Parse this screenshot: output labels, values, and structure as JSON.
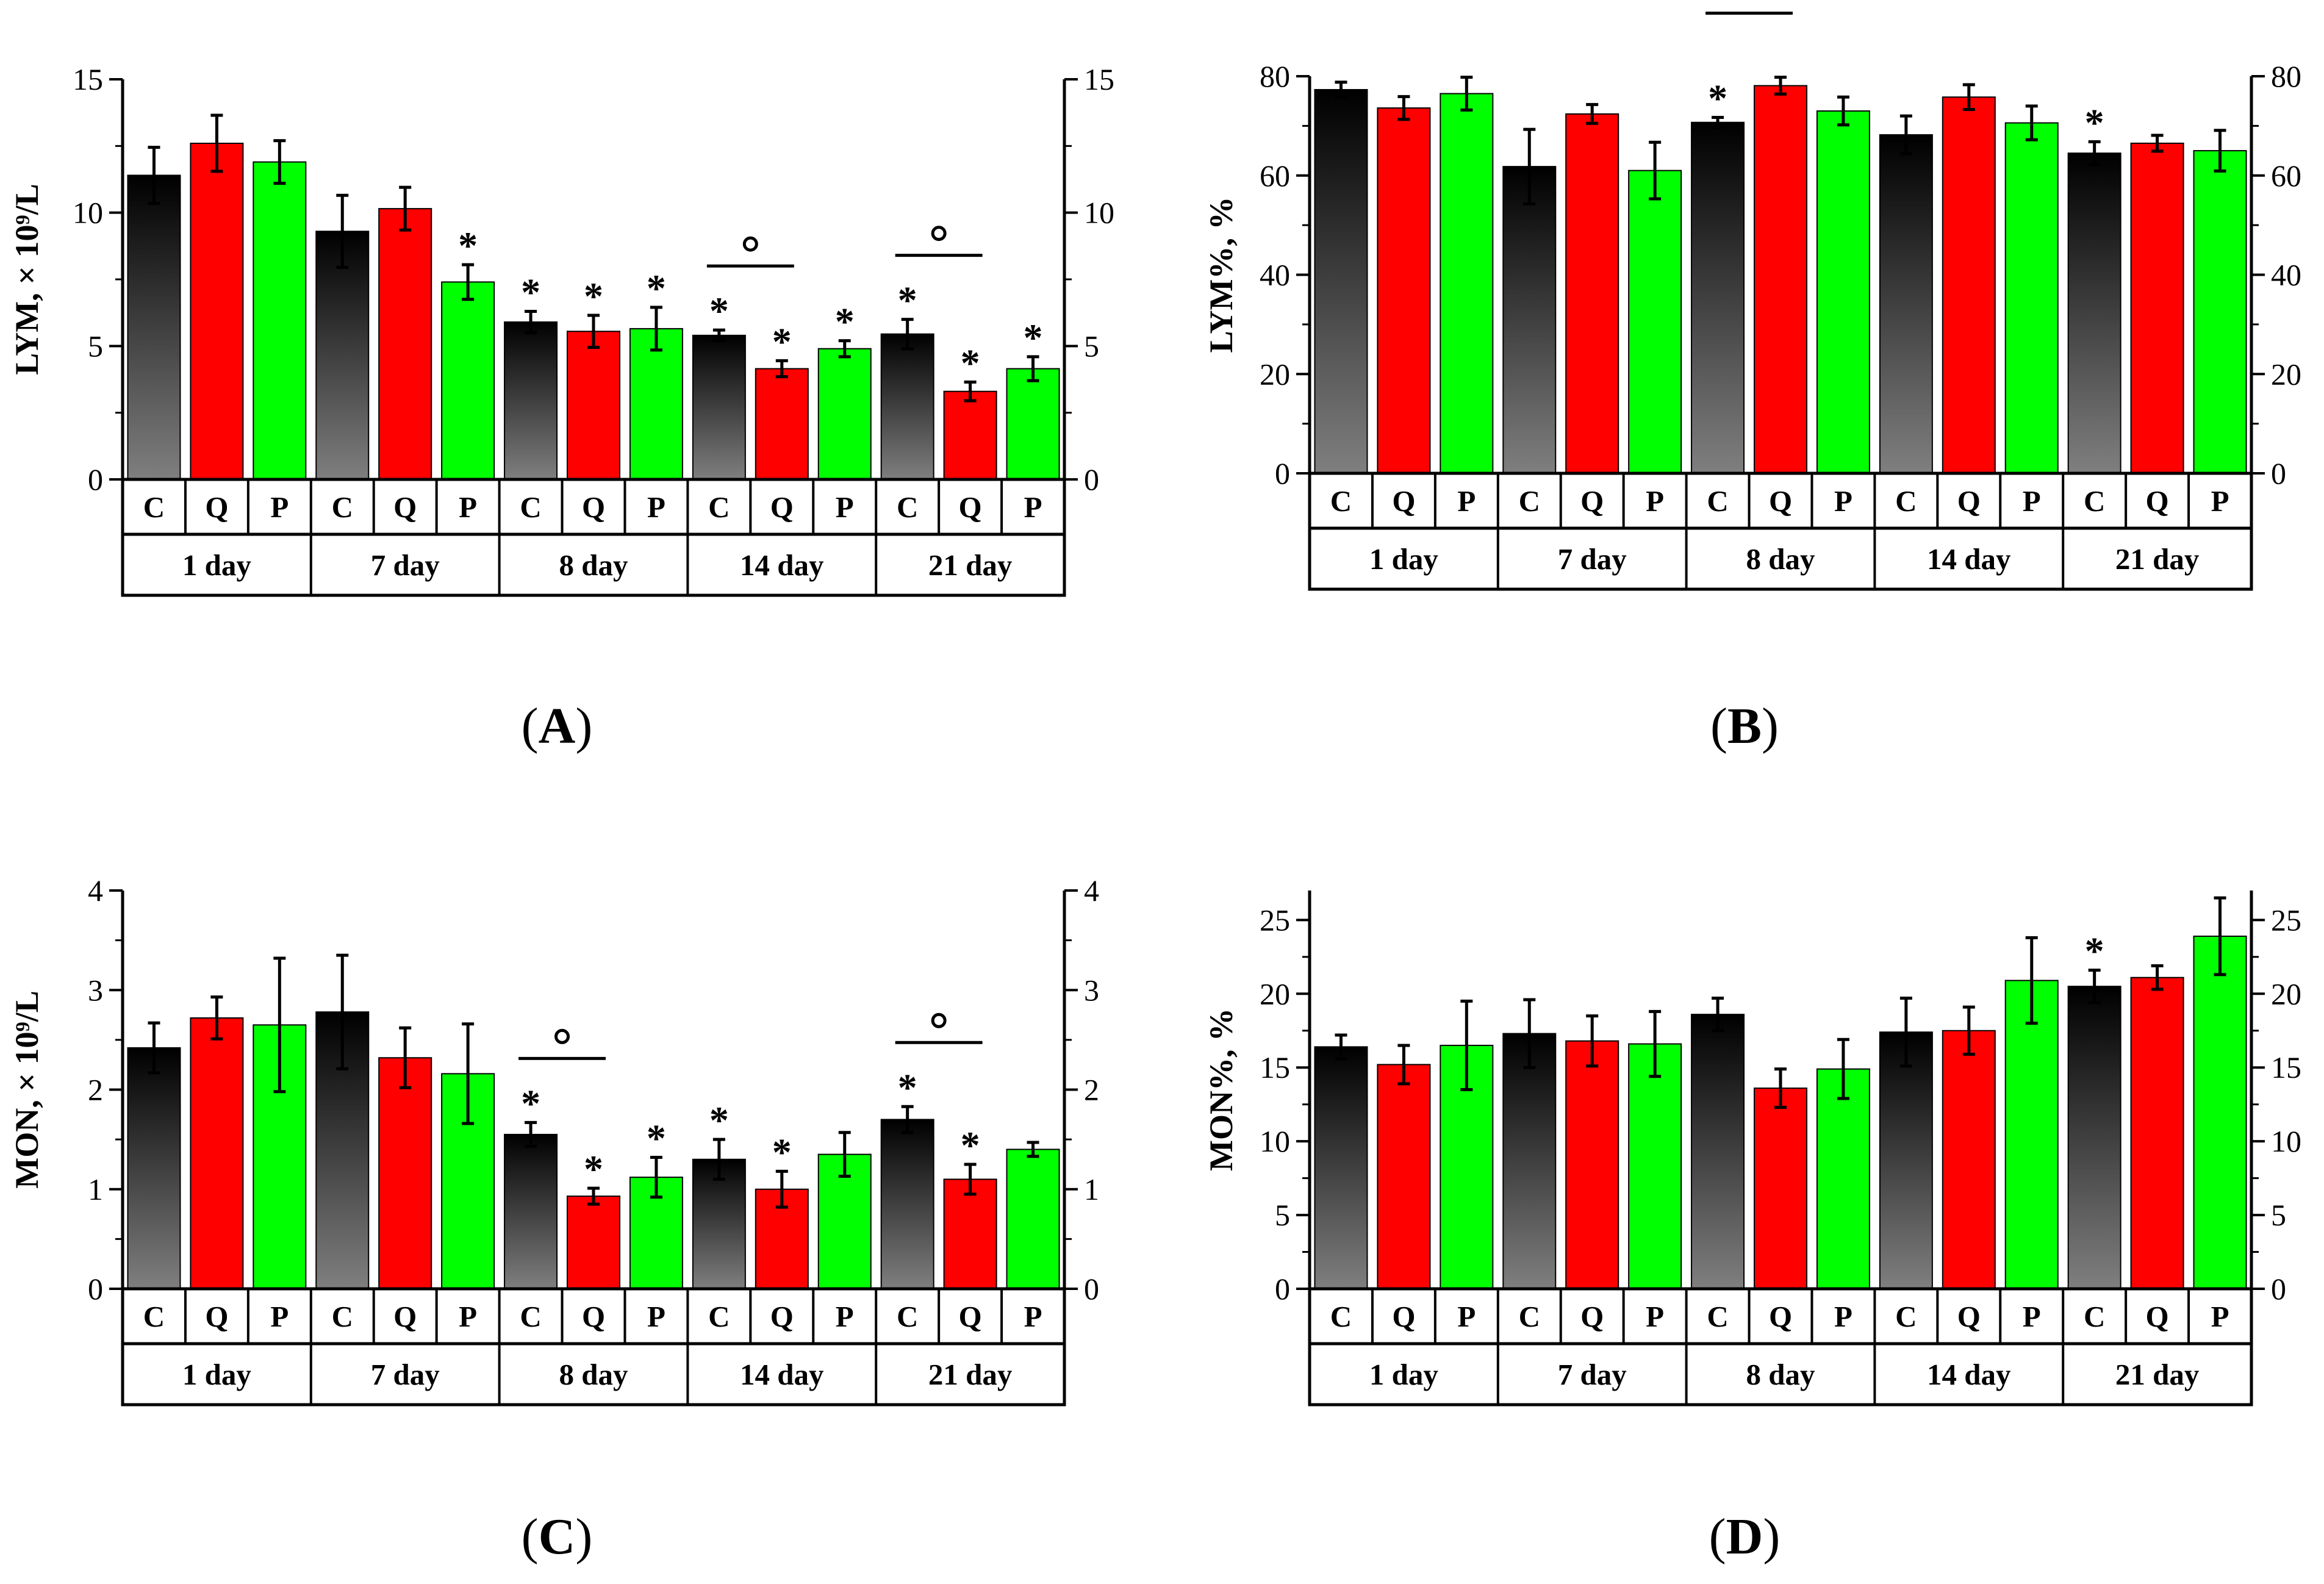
{
  "colors": {
    "C_top": "#000000",
    "C_bottom": "#7f7f7f",
    "Q": "#ff0000",
    "P": "#00ff00"
  },
  "group_labels": [
    "C",
    "Q",
    "P"
  ],
  "days": [
    "1 day",
    "7 day",
    "8 day",
    "14 day",
    "21 day"
  ],
  "chart_data": [
    {
      "id": "A",
      "type": "bar",
      "panel_label": "A",
      "ylabel": "LYM, × 10⁹/L",
      "ylim": [
        0,
        15
      ],
      "ticks": [
        0,
        5,
        10,
        15
      ],
      "tick_labels": [
        "0",
        "5",
        "10",
        "15"
      ],
      "series": [
        {
          "name": "C",
          "values": [
            11.4,
            9.3,
            5.9,
            5.4,
            5.45
          ],
          "errors": [
            1.05,
            1.35,
            0.4,
            0.2,
            0.55
          ]
        },
        {
          "name": "Q",
          "values": [
            12.6,
            10.15,
            5.55,
            4.15,
            3.3
          ],
          "errors": [
            1.05,
            0.8,
            0.6,
            0.3,
            0.35
          ]
        },
        {
          "name": "P",
          "values": [
            11.9,
            7.4,
            5.65,
            4.9,
            4.15
          ],
          "errors": [
            0.8,
            0.65,
            0.8,
            0.3,
            0.45
          ]
        }
      ],
      "stars": {
        "C": [
          0,
          0,
          1,
          1,
          1
        ],
        "Q": [
          0,
          0,
          1,
          1,
          1
        ],
        "P": [
          0,
          1,
          1,
          1,
          1
        ]
      },
      "circle_brackets": [
        3,
        4
      ]
    },
    {
      "id": "B",
      "type": "bar",
      "panel_label": "B",
      "ylabel": "LYM%, %",
      "ylim": [
        0,
        80
      ],
      "ticks": [
        0,
        20,
        40,
        60,
        80
      ],
      "tick_labels": [
        "0",
        "20",
        "40",
        "60",
        "80"
      ],
      "series": [
        {
          "name": "C",
          "values": [
            77.3,
            61.8,
            70.7,
            68.2,
            64.5
          ],
          "errors": [
            1.5,
            7.5,
            1.0,
            3.8,
            2.3
          ]
        },
        {
          "name": "Q",
          "values": [
            73.6,
            72.4,
            78.1,
            75.8,
            66.5
          ],
          "errors": [
            2.3,
            1.9,
            1.7,
            2.5,
            1.6
          ]
        },
        {
          "name": "P",
          "values": [
            76.5,
            61.0,
            73.0,
            70.6,
            65.0
          ],
          "errors": [
            3.3,
            5.7,
            2.8,
            3.4,
            4.1
          ]
        }
      ],
      "stars": {
        "C": [
          0,
          0,
          1,
          0,
          1
        ],
        "Q": [
          0,
          0,
          0,
          0,
          0
        ],
        "P": [
          0,
          0,
          0,
          0,
          0
        ]
      },
      "circle_brackets": [
        2
      ]
    },
    {
      "id": "C",
      "type": "bar",
      "panel_label": "C",
      "ylabel": "MON, × 10⁹/L",
      "ylim": [
        0,
        4
      ],
      "ticks": [
        0,
        1,
        2,
        3,
        4
      ],
      "tick_labels": [
        "0",
        "1",
        "2",
        "3",
        "4"
      ],
      "series": [
        {
          "name": "C",
          "values": [
            2.42,
            2.78,
            1.55,
            1.3,
            1.7
          ],
          "errors": [
            0.25,
            0.57,
            0.12,
            0.2,
            0.13
          ]
        },
        {
          "name": "Q",
          "values": [
            2.72,
            2.32,
            0.93,
            1.0,
            1.1
          ],
          "errors": [
            0.21,
            0.3,
            0.08,
            0.18,
            0.15
          ]
        },
        {
          "name": "P",
          "values": [
            2.65,
            2.16,
            1.12,
            1.35,
            1.4
          ],
          "errors": [
            0.67,
            0.5,
            0.2,
            0.22,
            0.07
          ]
        }
      ],
      "stars": {
        "C": [
          0,
          0,
          1,
          1,
          1
        ],
        "Q": [
          0,
          0,
          1,
          1,
          1
        ],
        "P": [
          0,
          0,
          1,
          0,
          0
        ]
      },
      "circle_brackets": [
        2,
        4
      ]
    },
    {
      "id": "D",
      "type": "bar",
      "panel_label": "D",
      "ylabel": "MON%, %",
      "ylim": [
        0,
        27
      ],
      "ticks": [
        0,
        5,
        10,
        15,
        20,
        25
      ],
      "tick_labels": [
        "0",
        "5",
        "10",
        "15",
        "20",
        "25"
      ],
      "series": [
        {
          "name": "C",
          "values": [
            16.4,
            17.3,
            18.6,
            17.4,
            20.5
          ],
          "errors": [
            0.8,
            2.3,
            1.1,
            2.3,
            1.1
          ]
        },
        {
          "name": "Q",
          "values": [
            15.2,
            16.8,
            13.6,
            17.5,
            21.1
          ],
          "errors": [
            1.3,
            1.7,
            1.3,
            1.6,
            0.8
          ]
        },
        {
          "name": "P",
          "values": [
            16.5,
            16.6,
            14.9,
            20.9,
            23.9
          ],
          "errors": [
            3.0,
            2.2,
            2.0,
            2.9,
            2.6
          ]
        }
      ],
      "stars": {
        "C": [
          0,
          0,
          0,
          0,
          1
        ],
        "Q": [
          0,
          0,
          0,
          0,
          0
        ],
        "P": [
          0,
          0,
          0,
          0,
          0
        ]
      },
      "circle_brackets": []
    }
  ]
}
